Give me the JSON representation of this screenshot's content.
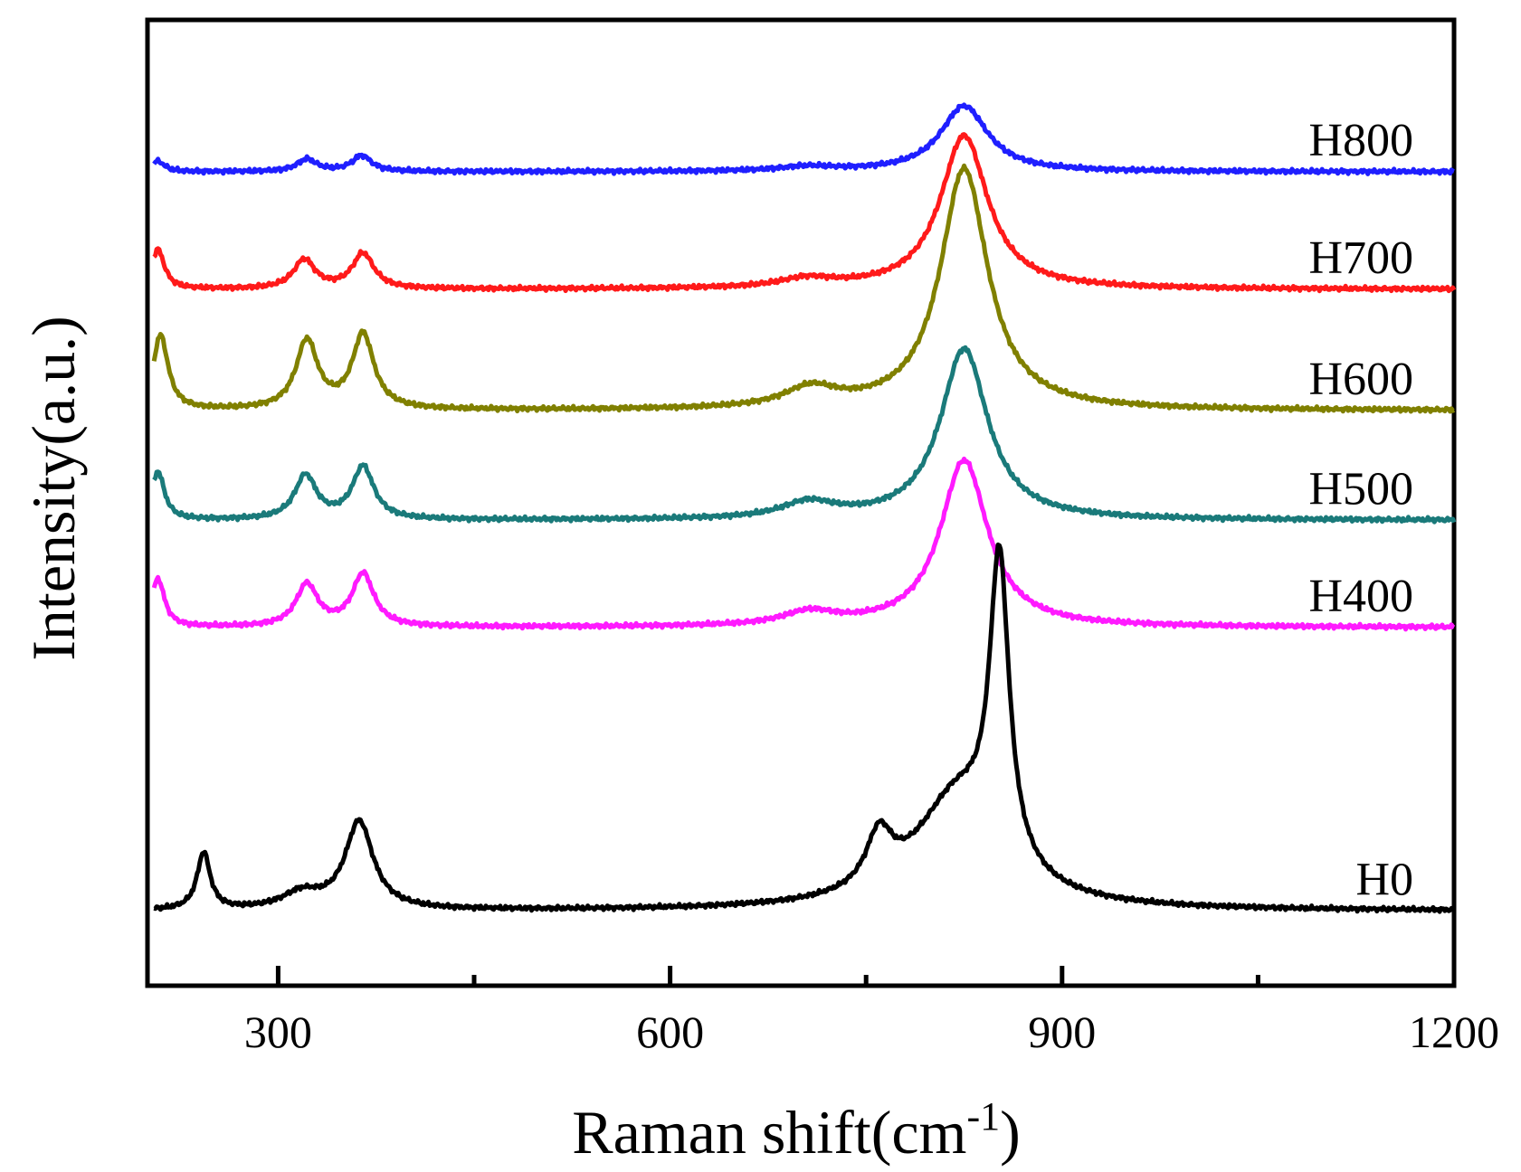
{
  "chart_data": {
    "type": "line",
    "title": "",
    "xlabel": "Raman shift(cm",
    "xlabel_sup": "-1",
    "xlabel_close": ")",
    "ylabel": "Intensity(a.u.)",
    "xlim": [
      200,
      1200
    ],
    "ylim": [
      0,
      11
    ],
    "x_ticks": [
      300,
      600,
      900,
      1200
    ],
    "x_tick_labels": [
      "300",
      "600",
      "900",
      "1200"
    ],
    "x_minor_ticks": [
      450,
      750,
      1050
    ],
    "y_ticks_shown": false,
    "grid": false,
    "legend": "inline labels at right end of each curve",
    "series": [
      {
        "name": "H800",
        "color": "#1f1fff",
        "baseline": 9.27,
        "peaks": [
          [
            208,
            0.12,
            6
          ],
          [
            322,
            0.14,
            9
          ],
          [
            364,
            0.18,
            9
          ],
          [
            705,
            0.05,
            25
          ],
          [
            825,
            0.75,
            22
          ]
        ]
      },
      {
        "name": "H700",
        "color": "#ff1a1a",
        "baseline": 7.93,
        "peaks": [
          [
            208,
            0.45,
            6
          ],
          [
            320,
            0.33,
            10
          ],
          [
            365,
            0.4,
            10
          ],
          [
            705,
            0.1,
            25
          ],
          [
            825,
            1.75,
            22
          ]
        ]
      },
      {
        "name": "H600",
        "color": "#808000",
        "baseline": 6.55,
        "peaks": [
          [
            210,
            0.85,
            7
          ],
          [
            322,
            0.78,
            10
          ],
          [
            365,
            0.85,
            10
          ],
          [
            708,
            0.22,
            25
          ],
          [
            825,
            2.75,
            22
          ]
        ]
      },
      {
        "name": "H500",
        "color": "#1a7a7a",
        "baseline": 5.3,
        "peaks": [
          [
            208,
            0.55,
            6
          ],
          [
            321,
            0.5,
            10
          ],
          [
            365,
            0.6,
            10
          ],
          [
            706,
            0.18,
            25
          ],
          [
            825,
            1.95,
            22
          ]
        ]
      },
      {
        "name": "H400",
        "color": "#ff1aff",
        "baseline": 4.08,
        "peaks": [
          [
            208,
            0.55,
            6
          ],
          [
            322,
            0.48,
            10
          ],
          [
            365,
            0.6,
            10
          ],
          [
            707,
            0.15,
            25
          ],
          [
            825,
            1.9,
            22
          ]
        ]
      },
      {
        "name": "H0",
        "color": "#000000",
        "baseline": 0.85,
        "peaks": [
          [
            243,
            0.65,
            6
          ],
          [
            318,
            0.18,
            18
          ],
          [
            362,
            1.0,
            13
          ],
          [
            760,
            0.6,
            12
          ],
          [
            820,
            1.25,
            40
          ],
          [
            852,
            3.4,
            9
          ]
        ]
      }
    ]
  }
}
